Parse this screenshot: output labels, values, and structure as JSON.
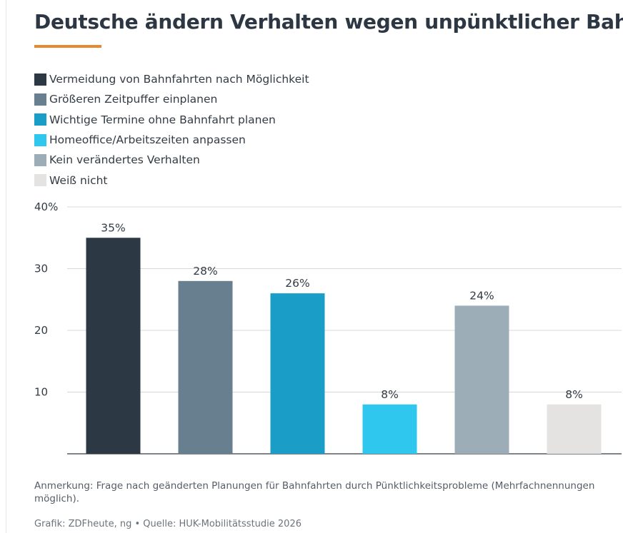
{
  "title": "Deutsche ändern Verhalten wegen unpünktlicher Bahn",
  "chart_data": {
    "type": "bar",
    "categories": [
      "Vermeidung von Bahnfahrten nach Möglichkeit",
      "Größeren Zeitpuffer einplanen",
      "Wichtige Termine ohne Bahnfahrt planen",
      "Homeoffice/Arbeitszeiten anpassen",
      "Kein verändertes Verhalten",
      "Weiß nicht"
    ],
    "values": [
      35,
      28,
      26,
      8,
      24,
      8
    ],
    "value_labels": [
      "35%",
      "28%",
      "26%",
      "8%",
      "24%",
      "8%"
    ],
    "colors": [
      "#2d3845",
      "#687f90",
      "#1a9ec7",
      "#30c7ee",
      "#9cadb8",
      "#e4e3e1"
    ],
    "ylim": [
      0,
      40
    ],
    "yticks": [
      10,
      20,
      30,
      40
    ],
    "ytick_labels": [
      "10",
      "20",
      "30",
      "40%"
    ],
    "grid": true,
    "legend_position": "top"
  },
  "note": "Anmerkung: Frage nach geänderten Planungen für Bahnfahrten durch Pünktlichkeitsprobleme (Mehrfachnennungen möglich).",
  "source": "Grafik: ZDFheute, ng • Quelle: HUK-Mobilitätsstudie 2026",
  "accent_color": "#e58a2e"
}
